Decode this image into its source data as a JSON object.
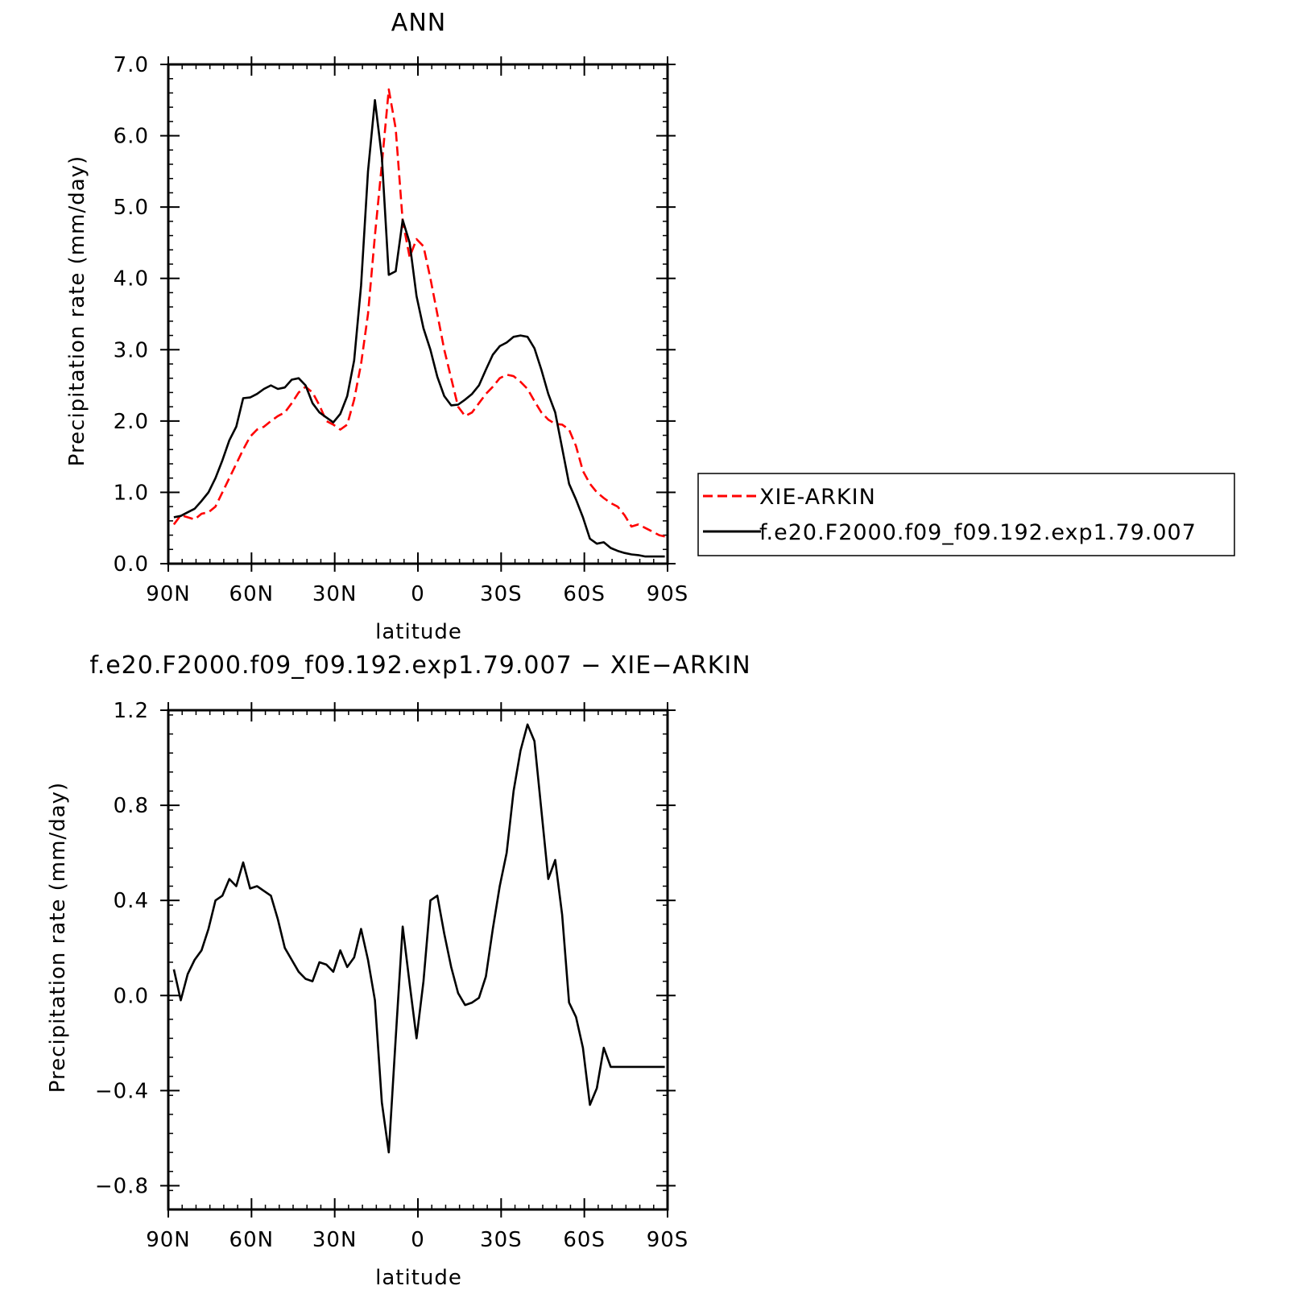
{
  "colors": {
    "obs": "#ff0000",
    "model": "#000000",
    "frame": "#000000"
  },
  "chart_data": [
    {
      "type": "line",
      "title": "ANN",
      "xlabel": "latitude",
      "ylabel": "Precipitation rate (mm/day)",
      "xlim": [
        90,
        -90
      ],
      "ylim": [
        0,
        7
      ],
      "xticks": [
        90,
        60,
        30,
        0,
        -30,
        -60,
        -90
      ],
      "xtick_labels": [
        "90N",
        "60N",
        "30N",
        "0",
        "30S",
        "60S",
        "90S"
      ],
      "yticks": [
        0,
        1,
        2,
        3,
        4,
        5,
        6,
        7
      ],
      "ytick_labels": [
        "0.0",
        "1.0",
        "2.0",
        "3.0",
        "4.0",
        "5.0",
        "6.0",
        "7.0"
      ],
      "legend_position": "right",
      "series": [
        {
          "name": "XIE-ARKIN",
          "style": "dashed",
          "color": "#ff0000",
          "x": [
            88,
            85.5,
            83,
            80.5,
            78,
            75.5,
            73,
            70.5,
            68,
            65.5,
            63,
            60.5,
            58,
            55.5,
            53,
            50.5,
            48,
            45.5,
            43,
            40.5,
            38,
            35.5,
            33,
            30.5,
            28,
            25.5,
            23,
            20.5,
            18,
            15.5,
            13,
            10.5,
            8,
            5.5,
            3,
            0.5,
            -2,
            -4.5,
            -7,
            -9.5,
            -12,
            -14.5,
            -17,
            -19.5,
            -22,
            -24.5,
            -27,
            -29.5,
            -32,
            -34.5,
            -37,
            -39.5,
            -42,
            -44.5,
            -47,
            -49.5,
            -52,
            -54.5,
            -57,
            -59.5,
            -62,
            -64.5,
            -67,
            -69.5,
            -72,
            -74.5,
            -77,
            -79.5,
            -82,
            -84.5,
            -87,
            -89
          ],
          "y": [
            0.55,
            0.68,
            0.65,
            0.62,
            0.7,
            0.72,
            0.8,
            1.0,
            1.2,
            1.4,
            1.6,
            1.78,
            1.88,
            1.92,
            2.0,
            2.07,
            2.12,
            2.25,
            2.4,
            2.48,
            2.4,
            2.22,
            2.0,
            1.95,
            1.88,
            1.95,
            2.3,
            2.8,
            3.5,
            4.6,
            5.6,
            6.65,
            6.1,
            4.8,
            4.3,
            4.55,
            4.45,
            4.0,
            3.5,
            3.0,
            2.6,
            2.2,
            2.07,
            2.12,
            2.25,
            2.38,
            2.48,
            2.6,
            2.65,
            2.63,
            2.55,
            2.45,
            2.28,
            2.12,
            2.02,
            1.96,
            1.95,
            1.88,
            1.65,
            1.3,
            1.12,
            1.0,
            0.92,
            0.85,
            0.8,
            0.68,
            0.52,
            0.55,
            0.5,
            0.45,
            0.4,
            0.38
          ]
        },
        {
          "name": "f.e20.F2000.f09_f09.192.exp1.79.007",
          "style": "solid",
          "color": "#000000",
          "x": [
            88,
            85.5,
            83,
            80.5,
            78,
            75.5,
            73,
            70.5,
            68,
            65.5,
            63,
            60.5,
            58,
            55.5,
            53,
            50.5,
            48,
            45.5,
            43,
            40.5,
            38,
            35.5,
            33,
            30.5,
            28,
            25.5,
            23,
            20.5,
            18,
            15.5,
            13,
            10.5,
            8,
            5.5,
            3,
            0.5,
            -2,
            -4.5,
            -7,
            -9.5,
            -12,
            -14.5,
            -17,
            -19.5,
            -22,
            -24.5,
            -27,
            -29.5,
            -32,
            -34.5,
            -37,
            -39.5,
            -42,
            -44.5,
            -47,
            -49.5,
            -52,
            -54.5,
            -57,
            -59.5,
            -62,
            -64.5,
            -67,
            -69.5,
            -72,
            -74.5,
            -77,
            -79.5,
            -82,
            -84.5,
            -87,
            -89
          ],
          "y": [
            0.65,
            0.67,
            0.72,
            0.77,
            0.88,
            1.0,
            1.2,
            1.45,
            1.73,
            1.92,
            2.32,
            2.33,
            2.38,
            2.45,
            2.5,
            2.45,
            2.47,
            2.58,
            2.6,
            2.5,
            2.25,
            2.12,
            2.05,
            1.98,
            2.1,
            2.35,
            2.85,
            3.9,
            5.5,
            6.5,
            5.7,
            4.05,
            4.1,
            4.82,
            4.5,
            3.75,
            3.3,
            3.0,
            2.62,
            2.35,
            2.22,
            2.23,
            2.3,
            2.38,
            2.5,
            2.72,
            2.93,
            3.05,
            3.1,
            3.18,
            3.2,
            3.18,
            3.02,
            2.72,
            2.38,
            2.12,
            1.62,
            1.12,
            0.9,
            0.65,
            0.35,
            0.28,
            0.3,
            0.22,
            0.18,
            0.15,
            0.13,
            0.12,
            0.1,
            0.1,
            0.1,
            0.1
          ]
        }
      ]
    },
    {
      "type": "line",
      "title": "f.e20.F2000.f09_f09.192.exp1.79.007 − XIE−ARKIN",
      "xlabel": "latitude",
      "ylabel": "Precipitation rate (mm/day)",
      "xlim": [
        90,
        -90
      ],
      "ylim": [
        -0.9,
        1.2
      ],
      "xticks": [
        90,
        60,
        30,
        0,
        -30,
        -60,
        -90
      ],
      "xtick_labels": [
        "90N",
        "60N",
        "30N",
        "0",
        "30S",
        "60S",
        "90S"
      ],
      "yticks": [
        1.2,
        0.8,
        0.4,
        0.0,
        -0.4,
        -0.8
      ],
      "ytick_labels": [
        "1.2",
        "0.8",
        "0.4",
        "0.0",
        "−0.4",
        "−0.8"
      ],
      "series": [
        {
          "name": "",
          "style": "solid",
          "color": "#000000",
          "x": [
            88,
            85.5,
            83,
            80.5,
            78,
            75.5,
            73,
            70.5,
            68,
            65.5,
            63,
            60.5,
            58,
            55.5,
            53,
            50.5,
            48,
            45.5,
            43,
            40.5,
            38,
            35.5,
            33,
            30.5,
            28,
            25.5,
            23,
            20.5,
            18,
            15.5,
            13,
            10.5,
            8,
            5.5,
            3,
            0.5,
            -2,
            -4.5,
            -7,
            -9.5,
            -12,
            -14.5,
            -17,
            -19.5,
            -22,
            -24.5,
            -27,
            -29.5,
            -32,
            -34.5,
            -37,
            -39.5,
            -42,
            -44.5,
            -47,
            -49.5,
            -52,
            -54.5,
            -57,
            -59.5,
            -62,
            -64.5,
            -67,
            -69.5,
            -72,
            -74.5,
            -77,
            -79.5,
            -82,
            -84.5,
            -87,
            -89
          ],
          "y": [
            0.11,
            -0.02,
            0.09,
            0.15,
            0.19,
            0.28,
            0.4,
            0.42,
            0.49,
            0.46,
            0.56,
            0.45,
            0.46,
            0.44,
            0.42,
            0.32,
            0.2,
            0.15,
            0.1,
            0.07,
            0.06,
            0.14,
            0.13,
            0.1,
            0.19,
            0.12,
            0.16,
            0.28,
            0.15,
            -0.02,
            -0.45,
            -0.66,
            -0.18,
            0.29,
            0.05,
            -0.18,
            0.06,
            0.4,
            0.42,
            0.26,
            0.12,
            0.01,
            -0.04,
            -0.03,
            -0.01,
            0.08,
            0.28,
            0.46,
            0.6,
            0.86,
            1.03,
            1.14,
            1.07,
            0.78,
            0.49,
            0.57,
            0.34,
            -0.03,
            -0.09,
            -0.22,
            -0.46,
            -0.39,
            -0.22,
            -0.3,
            -0.3,
            -0.3,
            -0.3,
            -0.3,
            -0.3,
            -0.3,
            -0.3,
            -0.3
          ]
        }
      ]
    }
  ]
}
